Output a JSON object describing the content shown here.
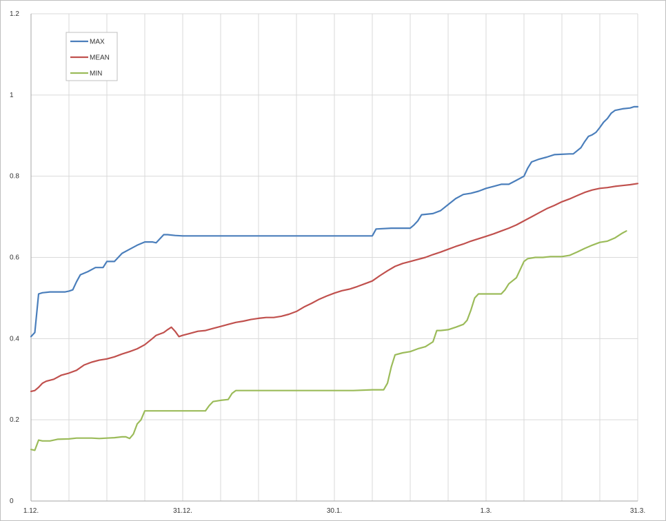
{
  "chart_data": {
    "type": "line",
    "title": "",
    "xlabel": "",
    "ylabel": "",
    "ylim": [
      0,
      1.2
    ],
    "y_ticks": [
      "0",
      "0.2",
      "0.4",
      "0.6",
      "0.8",
      "1",
      "1.2"
    ],
    "x_tick_labels": [
      "1.12.",
      "31.12.",
      "30.1.",
      "1.3.",
      "31.3."
    ],
    "x_range_days": [
      0,
      120
    ],
    "grid": true,
    "legend_position": "top-left",
    "series": [
      {
        "name": "MAX",
        "color": "#4a7ebb",
        "points": [
          [
            0,
            0.405
          ],
          [
            1,
            0.415
          ],
          [
            2,
            0.51
          ],
          [
            3,
            0.513
          ],
          [
            5,
            0.515
          ],
          [
            7,
            0.515
          ],
          [
            9,
            0.515
          ],
          [
            10,
            0.517
          ],
          [
            11,
            0.52
          ],
          [
            12,
            0.54
          ],
          [
            13,
            0.557
          ],
          [
            15,
            0.565
          ],
          [
            17,
            0.575
          ],
          [
            19,
            0.575
          ],
          [
            20,
            0.59
          ],
          [
            22,
            0.59
          ],
          [
            24,
            0.61
          ],
          [
            26,
            0.62
          ],
          [
            28,
            0.63
          ],
          [
            30,
            0.638
          ],
          [
            32,
            0.638
          ],
          [
            33,
            0.636
          ],
          [
            35,
            0.656
          ],
          [
            36,
            0.656
          ],
          [
            38,
            0.654
          ],
          [
            40,
            0.653
          ],
          [
            42,
            0.653
          ],
          [
            60,
            0.653
          ],
          [
            80,
            0.653
          ],
          [
            90,
            0.653
          ],
          [
            91,
            0.67
          ],
          [
            95,
            0.672
          ],
          [
            100,
            0.672
          ],
          [
            101,
            0.68
          ],
          [
            102,
            0.69
          ],
          [
            103,
            0.705
          ],
          [
            106,
            0.708
          ],
          [
            108,
            0.715
          ],
          [
            110,
            0.73
          ],
          [
            112,
            0.745
          ],
          [
            114,
            0.755
          ],
          [
            116,
            0.758
          ],
          [
            118,
            0.763
          ],
          [
            120,
            0.77
          ],
          [
            122,
            0.775
          ],
          [
            124,
            0.78
          ],
          [
            126,
            0.78
          ],
          [
            128,
            0.79
          ],
          [
            130,
            0.8
          ],
          [
            131,
            0.82
          ],
          [
            132,
            0.835
          ],
          [
            134,
            0.842
          ],
          [
            136,
            0.847
          ],
          [
            138,
            0.853
          ],
          [
            142,
            0.855
          ],
          [
            143,
            0.855
          ],
          [
            145,
            0.87
          ],
          [
            146,
            0.885
          ],
          [
            147,
            0.898
          ],
          [
            148,
            0.902
          ],
          [
            149,
            0.908
          ],
          [
            150,
            0.92
          ],
          [
            151,
            0.933
          ],
          [
            152,
            0.942
          ],
          [
            153,
            0.955
          ],
          [
            154,
            0.962
          ],
          [
            156,
            0.966
          ],
          [
            158,
            0.968
          ],
          [
            159,
            0.971
          ],
          [
            160,
            0.971
          ]
        ]
      },
      {
        "name": "MEAN",
        "color": "#c0504d",
        "points": [
          [
            0,
            0.27
          ],
          [
            1,
            0.272
          ],
          [
            2,
            0.28
          ],
          [
            3,
            0.29
          ],
          [
            4,
            0.295
          ],
          [
            6,
            0.3
          ],
          [
            8,
            0.31
          ],
          [
            10,
            0.315
          ],
          [
            12,
            0.322
          ],
          [
            14,
            0.335
          ],
          [
            16,
            0.342
          ],
          [
            18,
            0.347
          ],
          [
            20,
            0.35
          ],
          [
            22,
            0.355
          ],
          [
            24,
            0.362
          ],
          [
            26,
            0.368
          ],
          [
            28,
            0.375
          ],
          [
            30,
            0.385
          ],
          [
            32,
            0.4
          ],
          [
            33,
            0.408
          ],
          [
            35,
            0.415
          ],
          [
            36,
            0.422
          ],
          [
            37,
            0.428
          ],
          [
            38,
            0.418
          ],
          [
            39,
            0.405
          ],
          [
            40,
            0.408
          ],
          [
            42,
            0.413
          ],
          [
            44,
            0.418
          ],
          [
            46,
            0.42
          ],
          [
            48,
            0.425
          ],
          [
            50,
            0.43
          ],
          [
            52,
            0.435
          ],
          [
            54,
            0.44
          ],
          [
            56,
            0.443
          ],
          [
            58,
            0.447
          ],
          [
            60,
            0.45
          ],
          [
            62,
            0.452
          ],
          [
            64,
            0.452
          ],
          [
            66,
            0.455
          ],
          [
            68,
            0.46
          ],
          [
            70,
            0.467
          ],
          [
            72,
            0.478
          ],
          [
            74,
            0.487
          ],
          [
            76,
            0.497
          ],
          [
            78,
            0.505
          ],
          [
            80,
            0.512
          ],
          [
            82,
            0.518
          ],
          [
            84,
            0.522
          ],
          [
            86,
            0.528
          ],
          [
            88,
            0.535
          ],
          [
            90,
            0.542
          ],
          [
            92,
            0.555
          ],
          [
            94,
            0.567
          ],
          [
            96,
            0.578
          ],
          [
            98,
            0.585
          ],
          [
            100,
            0.59
          ],
          [
            102,
            0.595
          ],
          [
            104,
            0.6
          ],
          [
            106,
            0.607
          ],
          [
            108,
            0.613
          ],
          [
            110,
            0.62
          ],
          [
            112,
            0.627
          ],
          [
            114,
            0.633
          ],
          [
            116,
            0.64
          ],
          [
            118,
            0.646
          ],
          [
            120,
            0.652
          ],
          [
            122,
            0.658
          ],
          [
            124,
            0.665
          ],
          [
            126,
            0.672
          ],
          [
            128,
            0.68
          ],
          [
            130,
            0.69
          ],
          [
            132,
            0.7
          ],
          [
            134,
            0.71
          ],
          [
            136,
            0.72
          ],
          [
            138,
            0.728
          ],
          [
            140,
            0.737
          ],
          [
            142,
            0.744
          ],
          [
            144,
            0.752
          ],
          [
            146,
            0.76
          ],
          [
            148,
            0.766
          ],
          [
            150,
            0.77
          ],
          [
            152,
            0.772
          ],
          [
            154,
            0.775
          ],
          [
            156,
            0.777
          ],
          [
            158,
            0.779
          ],
          [
            160,
            0.782
          ]
        ]
      },
      {
        "name": "MIN",
        "color": "#9bbb59",
        "points": [
          [
            0,
            0.127
          ],
          [
            1,
            0.125
          ],
          [
            2,
            0.15
          ],
          [
            3,
            0.148
          ],
          [
            5,
            0.148
          ],
          [
            7,
            0.152
          ],
          [
            10,
            0.153
          ],
          [
            12,
            0.155
          ],
          [
            14,
            0.155
          ],
          [
            16,
            0.155
          ],
          [
            18,
            0.154
          ],
          [
            20,
            0.155
          ],
          [
            22,
            0.156
          ],
          [
            24,
            0.158
          ],
          [
            25,
            0.158
          ],
          [
            26,
            0.154
          ],
          [
            27,
            0.165
          ],
          [
            28,
            0.19
          ],
          [
            29,
            0.2
          ],
          [
            30,
            0.222
          ],
          [
            32,
            0.222
          ],
          [
            35,
            0.222
          ],
          [
            40,
            0.222
          ],
          [
            46,
            0.222
          ],
          [
            47,
            0.235
          ],
          [
            48,
            0.245
          ],
          [
            50,
            0.248
          ],
          [
            52,
            0.25
          ],
          [
            53,
            0.265
          ],
          [
            54,
            0.272
          ],
          [
            56,
            0.272
          ],
          [
            58,
            0.272
          ],
          [
            60,
            0.272
          ],
          [
            70,
            0.272
          ],
          [
            80,
            0.272
          ],
          [
            85,
            0.272
          ],
          [
            90,
            0.274
          ],
          [
            93,
            0.274
          ],
          [
            94,
            0.29
          ],
          [
            95,
            0.33
          ],
          [
            96,
            0.36
          ],
          [
            98,
            0.365
          ],
          [
            100,
            0.368
          ],
          [
            102,
            0.375
          ],
          [
            104,
            0.38
          ],
          [
            106,
            0.392
          ],
          [
            107,
            0.42
          ],
          [
            108,
            0.42
          ],
          [
            110,
            0.422
          ],
          [
            112,
            0.428
          ],
          [
            114,
            0.435
          ],
          [
            115,
            0.445
          ],
          [
            116,
            0.47
          ],
          [
            117,
            0.5
          ],
          [
            118,
            0.51
          ],
          [
            120,
            0.51
          ],
          [
            122,
            0.51
          ],
          [
            124,
            0.51
          ],
          [
            125,
            0.52
          ],
          [
            126,
            0.535
          ],
          [
            128,
            0.55
          ],
          [
            129,
            0.57
          ],
          [
            130,
            0.59
          ],
          [
            131,
            0.597
          ],
          [
            133,
            0.6
          ],
          [
            135,
            0.6
          ],
          [
            137,
            0.602
          ],
          [
            140,
            0.602
          ],
          [
            142,
            0.605
          ],
          [
            144,
            0.613
          ],
          [
            146,
            0.622
          ],
          [
            148,
            0.63
          ],
          [
            150,
            0.637
          ],
          [
            152,
            0.64
          ],
          [
            154,
            0.648
          ],
          [
            156,
            0.66
          ],
          [
            157,
            0.665
          ]
        ]
      }
    ]
  }
}
